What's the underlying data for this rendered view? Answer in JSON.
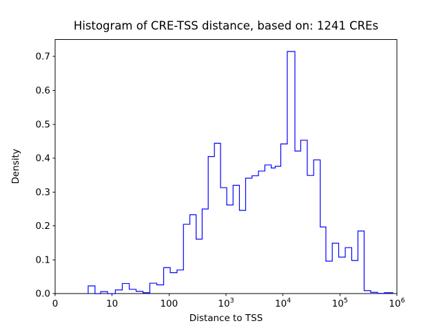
{
  "chart_data": {
    "type": "histogram",
    "histtype": "step",
    "title": "Histogram of CRE-TSS distance, based on: 1241 CREs",
    "xlabel": "Distance to TSS",
    "ylabel": "Density",
    "sample_count": 1241,
    "line_color": "#0000ff",
    "axis_color": "#000000",
    "background_color": "#ffffff",
    "x_scale": "symlog",
    "x_linthresh": 10,
    "xlim": [
      0,
      1000000
    ],
    "ylim": [
      0,
      0.75
    ],
    "grid": false,
    "legend": "none",
    "x_ticks": [
      {
        "value": 0,
        "label": "0"
      },
      {
        "value": 10,
        "label": "10"
      },
      {
        "value": 100,
        "label": "100"
      },
      {
        "value": 1000,
        "base": "10",
        "exp": "3"
      },
      {
        "value": 10000,
        "base": "10",
        "exp": "4"
      },
      {
        "value": 100000,
        "base": "10",
        "exp": "5"
      },
      {
        "value": 1000000,
        "base": "10",
        "exp": "6"
      }
    ],
    "y_ticks": [
      {
        "value": 0.0,
        "label": "0.0"
      },
      {
        "value": 0.1,
        "label": "0.1"
      },
      {
        "value": 0.2,
        "label": "0.2"
      },
      {
        "value": 0.3,
        "label": "0.3"
      },
      {
        "value": 0.4,
        "label": "0.4"
      },
      {
        "value": 0.5,
        "label": "0.5"
      },
      {
        "value": 0.6,
        "label": "0.6"
      },
      {
        "value": 0.7,
        "label": "0.7"
      }
    ],
    "bin_edges": [
      5.8,
      7.0,
      8.0,
      9.2,
      11.4,
      15.1,
      20,
      26.4,
      34.9,
      46,
      60.9,
      80.4,
      105,
      138,
      179,
      232,
      299,
      381,
      487,
      626,
      802,
      1030,
      1330,
      1720,
      2210,
      2860,
      3710,
      4810,
      6230,
      7320,
      9150,
      11900,
      16200,
      20500,
      26700,
      34600,
      45100,
      56700,
      73300,
      95000,
      124000,
      161000,
      207000,
      266000,
      347000,
      458000,
      605000,
      846000
    ],
    "densities": [
      0.023,
      0,
      0.006,
      0,
      0.011,
      0.03,
      0.013,
      0.007,
      0.003,
      0.031,
      0.026,
      0.077,
      0.062,
      0.07,
      0.205,
      0.233,
      0.161,
      0.25,
      0.405,
      0.444,
      0.313,
      0.262,
      0.32,
      0.246,
      0.341,
      0.348,
      0.362,
      0.38,
      0.371,
      0.376,
      0.442,
      0.715,
      0.421,
      0.453,
      0.349,
      0.395,
      0.197,
      0.096,
      0.149,
      0.108,
      0.136,
      0.098,
      0.185,
      0.009,
      0.004,
      0.001,
      0.003
    ]
  }
}
